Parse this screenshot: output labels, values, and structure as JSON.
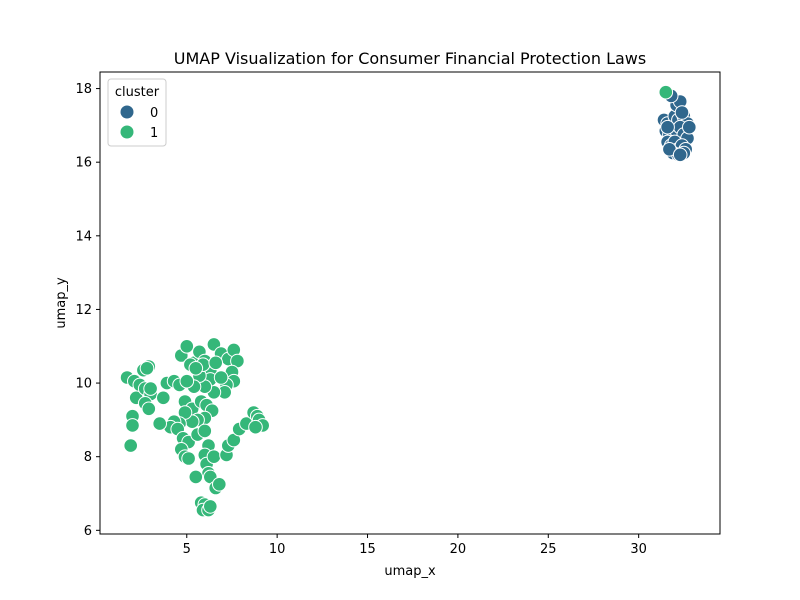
{
  "chart_data": {
    "type": "scatter",
    "title": "UMAP Visualization for Consumer Financial Protection Laws",
    "xlabel": "umap_x",
    "ylabel": "umap_y",
    "xlim": [
      0.2,
      34.5
    ],
    "ylim": [
      5.9,
      18.45
    ],
    "xticks": [
      5,
      10,
      15,
      20,
      25,
      30
    ],
    "yticks": [
      6,
      8,
      10,
      12,
      14,
      16,
      18
    ],
    "grid": false,
    "legend": {
      "title": "cluster",
      "position": "top-left",
      "entries": [
        {
          "label": "0",
          "color": "#30678d"
        },
        {
          "label": "1",
          "color": "#35b779"
        }
      ]
    },
    "series": [
      {
        "color": "#30678d",
        "points": [
          [
            31.4,
            17.15
          ],
          [
            31.6,
            17.05
          ],
          [
            31.8,
            16.95
          ],
          [
            32.0,
            17.25
          ],
          [
            32.2,
            17.15
          ],
          [
            32.5,
            17.25
          ],
          [
            32.7,
            17.05
          ],
          [
            32.6,
            16.85
          ],
          [
            31.5,
            16.85
          ],
          [
            31.7,
            16.75
          ],
          [
            31.9,
            16.65
          ],
          [
            32.1,
            16.85
          ],
          [
            32.3,
            16.95
          ],
          [
            32.5,
            16.75
          ],
          [
            32.7,
            16.65
          ],
          [
            31.6,
            16.55
          ],
          [
            31.8,
            16.45
          ],
          [
            32.0,
            16.55
          ],
          [
            32.2,
            16.35
          ],
          [
            32.4,
            16.45
          ],
          [
            32.6,
            16.35
          ],
          [
            31.9,
            16.25
          ],
          [
            32.2,
            16.2
          ],
          [
            32.5,
            16.25
          ],
          [
            31.7,
            16.35
          ],
          [
            32.1,
            17.55
          ],
          [
            32.3,
            17.65
          ],
          [
            31.8,
            17.8
          ],
          [
            32.4,
            17.35
          ],
          [
            32.3,
            16.2
          ],
          [
            31.6,
            16.95
          ],
          [
            32.8,
            16.95
          ]
        ]
      },
      {
        "color": "#35b779",
        "points": [
          [
            31.5,
            17.9
          ],
          [
            1.7,
            10.15
          ],
          [
            2.1,
            10.05
          ],
          [
            2.4,
            9.95
          ],
          [
            2.2,
            9.6
          ],
          [
            2.6,
            10.35
          ],
          [
            2.9,
            10.45
          ],
          [
            2.7,
            9.85
          ],
          [
            3.0,
            9.7
          ],
          [
            2.7,
            9.45
          ],
          [
            2.9,
            9.3
          ],
          [
            2.0,
            9.1
          ],
          [
            2.0,
            8.85
          ],
          [
            1.9,
            8.3
          ],
          [
            2.8,
            10.4
          ],
          [
            3.0,
            9.85
          ],
          [
            3.7,
            9.6
          ],
          [
            3.9,
            10.0
          ],
          [
            4.3,
            10.05
          ],
          [
            4.6,
            9.95
          ],
          [
            4.7,
            10.75
          ],
          [
            5.0,
            11.0
          ],
          [
            5.4,
            10.55
          ],
          [
            5.7,
            10.85
          ],
          [
            6.0,
            10.6
          ],
          [
            6.3,
            10.35
          ],
          [
            6.5,
            11.05
          ],
          [
            6.9,
            10.8
          ],
          [
            7.3,
            10.65
          ],
          [
            7.6,
            10.9
          ],
          [
            7.8,
            10.6
          ],
          [
            7.5,
            10.3
          ],
          [
            7.6,
            10.05
          ],
          [
            7.2,
            9.95
          ],
          [
            7.1,
            9.75
          ],
          [
            6.5,
            9.75
          ],
          [
            6.3,
            10.1
          ],
          [
            6.0,
            9.9
          ],
          [
            5.7,
            10.2
          ],
          [
            5.4,
            9.9
          ],
          [
            5.0,
            10.05
          ],
          [
            5.2,
            10.5
          ],
          [
            4.9,
            9.5
          ],
          [
            5.3,
            9.3
          ],
          [
            5.8,
            9.5
          ],
          [
            6.1,
            9.4
          ],
          [
            6.4,
            9.25
          ],
          [
            6.0,
            9.05
          ],
          [
            5.6,
            9.0
          ],
          [
            5.3,
            8.95
          ],
          [
            4.9,
            9.2
          ],
          [
            4.6,
            8.9
          ],
          [
            4.3,
            8.95
          ],
          [
            4.1,
            8.8
          ],
          [
            3.5,
            8.9
          ],
          [
            4.5,
            8.75
          ],
          [
            4.8,
            8.5
          ],
          [
            5.1,
            8.4
          ],
          [
            4.7,
            8.2
          ],
          [
            4.9,
            8.0
          ],
          [
            5.1,
            7.95
          ],
          [
            5.6,
            8.6
          ],
          [
            6.0,
            8.7
          ],
          [
            6.2,
            8.3
          ],
          [
            6.0,
            8.05
          ],
          [
            6.1,
            7.8
          ],
          [
            6.2,
            7.55
          ],
          [
            6.5,
            8.0
          ],
          [
            5.5,
            7.45
          ],
          [
            6.3,
            7.45
          ],
          [
            6.6,
            7.15
          ],
          [
            6.8,
            7.25
          ],
          [
            5.8,
            6.75
          ],
          [
            6.0,
            6.7
          ],
          [
            5.9,
            6.55
          ],
          [
            6.2,
            6.55
          ],
          [
            6.3,
            6.65
          ],
          [
            7.2,
            8.05
          ],
          [
            7.3,
            8.3
          ],
          [
            7.6,
            8.45
          ],
          [
            7.9,
            8.75
          ],
          [
            8.3,
            8.9
          ],
          [
            8.7,
            9.2
          ],
          [
            8.9,
            9.1
          ],
          [
            9.0,
            9.0
          ],
          [
            9.2,
            8.85
          ],
          [
            8.8,
            8.8
          ],
          [
            5.9,
            10.5
          ],
          [
            6.6,
            10.55
          ],
          [
            6.9,
            10.15
          ],
          [
            5.5,
            10.4
          ]
        ]
      }
    ]
  }
}
